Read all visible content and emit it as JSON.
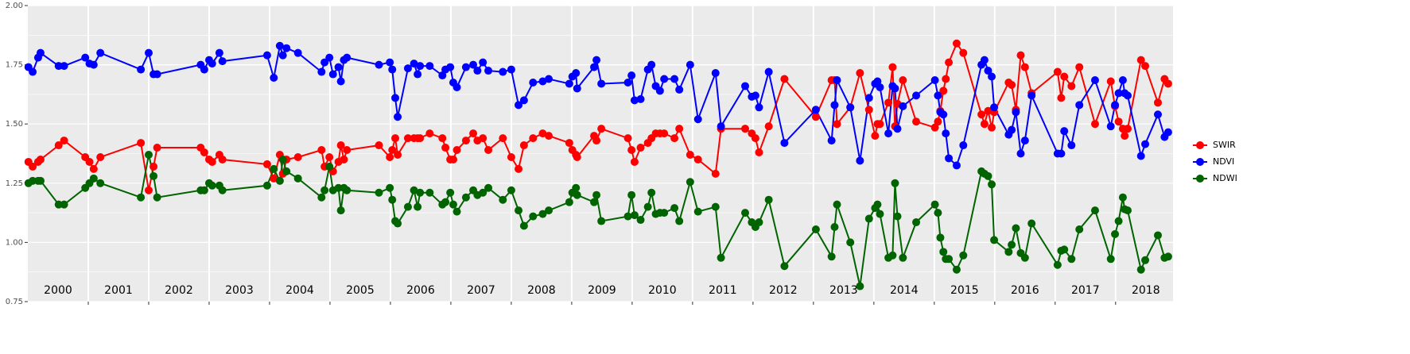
{
  "chart_data": {
    "type": "line",
    "x": [
      2000.01,
      2000.08,
      2000.17,
      2000.21,
      2000.51,
      2000.6,
      2000.95,
      2001.02,
      2001.09,
      2001.2,
      2001.87,
      2002.0,
      2002.08,
      2002.14,
      2002.86,
      2002.92,
      2003.0,
      2003.05,
      2003.17,
      2003.22,
      2003.96,
      2004.07,
      2004.17,
      2004.22,
      2004.28,
      2004.47,
      2004.86,
      2004.91,
      2004.99,
      2005.05,
      2005.14,
      2005.18,
      2005.23,
      2005.28,
      2005.81,
      2005.99,
      2006.03,
      2006.08,
      2006.12,
      2006.29,
      2006.39,
      2006.45,
      2006.49,
      2006.65,
      2006.86,
      2006.91,
      2006.99,
      2007.04,
      2007.1,
      2007.25,
      2007.37,
      2007.44,
      2007.53,
      2007.62,
      2007.86,
      2008.0,
      2008.12,
      2008.21,
      2008.36,
      2008.52,
      2008.62,
      2008.96,
      2009.01,
      2009.07,
      2009.09,
      2009.37,
      2009.41,
      2009.49,
      2009.93,
      2009.99,
      2010.04,
      2010.14,
      2010.26,
      2010.32,
      2010.39,
      2010.46,
      2010.53,
      2010.7,
      2010.78,
      2010.96,
      2011.09,
      2011.38,
      2011.47,
      2011.87,
      2011.98,
      2012.04,
      2012.1,
      2012.26,
      2012.52,
      2013.04,
      2013.3,
      2013.35,
      2013.39,
      2013.61,
      2013.77,
      2013.92,
      2014.02,
      2014.06,
      2014.1,
      2014.24,
      2014.31,
      2014.35,
      2014.39,
      2014.48,
      2014.7,
      2015.01,
      2015.06,
      2015.1,
      2015.15,
      2015.19,
      2015.24,
      2015.37,
      2015.48,
      2015.78,
      2015.83,
      2015.89,
      2015.95,
      2015.99,
      2016.23,
      2016.28,
      2016.35,
      2016.43,
      2016.5,
      2016.61,
      2017.04,
      2017.1,
      2017.15,
      2017.27,
      2017.4,
      2017.66,
      2017.92,
      2017.99,
      2018.05,
      2018.12,
      2018.15,
      2018.2,
      2018.42,
      2018.49,
      2018.7,
      2018.81,
      2018.87
    ],
    "series": [
      {
        "name": "SWIR",
        "color": "#ff0000",
        "values": [
          1.34,
          1.32,
          1.34,
          1.35,
          1.41,
          1.43,
          1.36,
          1.34,
          1.31,
          1.36,
          1.42,
          1.22,
          1.32,
          1.4,
          1.4,
          1.38,
          1.35,
          1.34,
          1.37,
          1.35,
          1.33,
          1.27,
          1.37,
          1.29,
          1.35,
          1.36,
          1.39,
          1.32,
          1.36,
          1.3,
          1.34,
          1.41,
          1.35,
          1.39,
          1.41,
          1.36,
          1.39,
          1.44,
          1.37,
          1.44,
          1.44,
          1.44,
          1.44,
          1.46,
          1.44,
          1.4,
          1.35,
          1.35,
          1.39,
          1.43,
          1.46,
          1.43,
          1.44,
          1.39,
          1.44,
          1.36,
          1.31,
          1.41,
          1.44,
          1.46,
          1.45,
          1.42,
          1.39,
          1.37,
          1.36,
          1.45,
          1.43,
          1.48,
          1.44,
          1.39,
          1.34,
          1.4,
          1.42,
          1.44,
          1.46,
          1.46,
          1.46,
          1.44,
          1.48,
          1.37,
          1.35,
          1.29,
          1.48,
          1.48,
          1.46,
          1.44,
          1.38,
          1.49,
          1.69,
          1.53,
          1.685,
          1.685,
          1.5,
          1.57,
          1.715,
          1.56,
          1.45,
          1.5,
          1.5,
          1.59,
          1.74,
          1.49,
          1.585,
          1.685,
          1.51,
          1.485,
          1.51,
          1.555,
          1.64,
          1.69,
          1.76,
          1.84,
          1.8,
          1.54,
          1.5,
          1.555,
          1.485,
          1.55,
          1.675,
          1.665,
          1.56,
          1.79,
          1.74,
          1.63,
          1.72,
          1.61,
          1.7,
          1.66,
          1.74,
          1.5,
          1.68,
          1.575,
          1.51,
          1.48,
          1.45,
          1.48,
          1.77,
          1.745,
          1.59,
          1.69,
          1.67
        ]
      },
      {
        "name": "NDVI",
        "color": "#0000ff",
        "values": [
          1.74,
          1.72,
          1.78,
          1.8,
          1.745,
          1.745,
          1.78,
          1.755,
          1.75,
          1.8,
          1.73,
          1.8,
          1.71,
          1.71,
          1.75,
          1.73,
          1.77,
          1.755,
          1.8,
          1.765,
          1.79,
          1.695,
          1.83,
          1.79,
          1.82,
          1.8,
          1.72,
          1.76,
          1.78,
          1.71,
          1.74,
          1.68,
          1.77,
          1.78,
          1.75,
          1.76,
          1.73,
          1.61,
          1.53,
          1.735,
          1.755,
          1.71,
          1.745,
          1.745,
          1.705,
          1.73,
          1.74,
          1.675,
          1.655,
          1.74,
          1.75,
          1.725,
          1.76,
          1.725,
          1.72,
          1.73,
          1.58,
          1.6,
          1.675,
          1.68,
          1.69,
          1.67,
          1.7,
          1.715,
          1.65,
          1.74,
          1.77,
          1.67,
          1.675,
          1.705,
          1.6,
          1.605,
          1.73,
          1.75,
          1.66,
          1.64,
          1.69,
          1.69,
          1.645,
          1.75,
          1.52,
          1.715,
          1.49,
          1.66,
          1.615,
          1.62,
          1.57,
          1.72,
          1.42,
          1.56,
          1.43,
          1.58,
          1.685,
          1.57,
          1.345,
          1.61,
          1.67,
          1.68,
          1.655,
          1.46,
          1.66,
          1.65,
          1.48,
          1.575,
          1.62,
          1.685,
          1.62,
          1.55,
          1.54,
          1.46,
          1.355,
          1.325,
          1.41,
          1.75,
          1.77,
          1.725,
          1.7,
          1.57,
          1.455,
          1.475,
          1.55,
          1.375,
          1.43,
          1.62,
          1.375,
          1.375,
          1.47,
          1.41,
          1.58,
          1.685,
          1.49,
          1.58,
          1.63,
          1.685,
          1.63,
          1.62,
          1.365,
          1.415,
          1.54,
          1.445,
          1.465
        ]
      },
      {
        "name": "NDWI",
        "color": "#006400",
        "values": [
          1.25,
          1.26,
          1.26,
          1.26,
          1.16,
          1.16,
          1.23,
          1.25,
          1.27,
          1.25,
          1.19,
          1.37,
          1.28,
          1.19,
          1.22,
          1.22,
          1.25,
          1.24,
          1.24,
          1.22,
          1.24,
          1.31,
          1.26,
          1.35,
          1.3,
          1.27,
          1.19,
          1.22,
          1.32,
          1.22,
          1.23,
          1.135,
          1.23,
          1.22,
          1.21,
          1.23,
          1.18,
          1.09,
          1.08,
          1.15,
          1.22,
          1.15,
          1.21,
          1.21,
          1.16,
          1.17,
          1.21,
          1.16,
          1.13,
          1.19,
          1.22,
          1.2,
          1.21,
          1.23,
          1.18,
          1.22,
          1.135,
          1.07,
          1.11,
          1.12,
          1.135,
          1.17,
          1.21,
          1.23,
          1.2,
          1.17,
          1.2,
          1.09,
          1.11,
          1.2,
          1.115,
          1.095,
          1.15,
          1.21,
          1.12,
          1.125,
          1.125,
          1.145,
          1.09,
          1.255,
          1.13,
          1.15,
          0.935,
          1.125,
          1.085,
          1.065,
          1.085,
          1.18,
          0.9,
          1.055,
          0.94,
          1.065,
          1.16,
          1.0,
          0.815,
          1.1,
          1.145,
          1.16,
          1.12,
          0.935,
          0.945,
          1.25,
          1.11,
          0.935,
          1.085,
          1.16,
          1.125,
          1.02,
          0.96,
          0.93,
          0.93,
          0.885,
          0.945,
          1.3,
          1.29,
          1.28,
          1.245,
          1.01,
          0.96,
          0.99,
          1.06,
          0.955,
          0.935,
          1.08,
          0.905,
          0.965,
          0.97,
          0.93,
          1.055,
          1.135,
          0.93,
          1.035,
          1.09,
          1.19,
          1.14,
          1.135,
          0.885,
          0.925,
          1.03,
          0.935,
          0.94
        ]
      }
    ],
    "xlim": [
      2000,
      2018.95
    ],
    "xticks": [
      {
        "value": 2000.5,
        "label": "2000"
      },
      {
        "value": 2001.5,
        "label": "2001"
      },
      {
        "value": 2002.5,
        "label": "2002"
      },
      {
        "value": 2003.5,
        "label": "2003"
      },
      {
        "value": 2004.5,
        "label": "2004"
      },
      {
        "value": 2005.5,
        "label": "2005"
      },
      {
        "value": 2006.5,
        "label": "2006"
      },
      {
        "value": 2007.5,
        "label": "2007"
      },
      {
        "value": 2008.5,
        "label": "2008"
      },
      {
        "value": 2009.5,
        "label": "2009"
      },
      {
        "value": 2010.5,
        "label": "2010"
      },
      {
        "value": 2011.5,
        "label": "2011"
      },
      {
        "value": 2012.5,
        "label": "2012"
      },
      {
        "value": 2013.5,
        "label": "2013"
      },
      {
        "value": 2014.5,
        "label": "2014"
      },
      {
        "value": 2015.5,
        "label": "2015"
      },
      {
        "value": 2016.5,
        "label": "2016"
      },
      {
        "value": 2017.5,
        "label": "2017"
      },
      {
        "value": 2018.5,
        "label": "2018"
      }
    ],
    "ylim": [
      0.75,
      2.0
    ],
    "yticks": [
      {
        "value": 0.75,
        "label": "0.75"
      },
      {
        "value": 1.0,
        "label": "1.00"
      },
      {
        "value": 1.25,
        "label": "1.25"
      },
      {
        "value": 1.5,
        "label": "1.50"
      },
      {
        "value": 1.75,
        "label": "1.75"
      },
      {
        "value": 2.0,
        "label": "2.00"
      }
    ],
    "grid": true,
    "legend": "right"
  }
}
